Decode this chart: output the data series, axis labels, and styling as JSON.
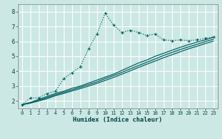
{
  "xlabel": "Humidex (Indice chaleur)",
  "ylabel": "",
  "background_color": "#cce8e4",
  "grid_color": "#ffffff",
  "line_color": "#006060",
  "x": [
    0,
    1,
    2,
    3,
    4,
    5,
    6,
    7,
    8,
    9,
    10,
    11,
    12,
    13,
    14,
    15,
    16,
    17,
    18,
    19,
    20,
    21,
    22,
    23
  ],
  "series1": [
    1.75,
    2.2,
    2.2,
    2.5,
    2.65,
    3.5,
    3.9,
    4.3,
    5.5,
    6.5,
    7.9,
    7.1,
    6.6,
    6.75,
    6.6,
    6.4,
    6.5,
    6.1,
    6.05,
    6.1,
    6.05,
    6.1,
    6.2,
    6.3
  ],
  "series2": [
    1.75,
    1.9,
    2.1,
    2.3,
    2.5,
    2.65,
    2.85,
    3.0,
    3.2,
    3.4,
    3.6,
    3.8,
    4.05,
    4.3,
    4.55,
    4.75,
    5.0,
    5.2,
    5.4,
    5.6,
    5.78,
    5.95,
    6.1,
    6.28
  ],
  "series3": [
    1.75,
    1.88,
    2.05,
    2.22,
    2.42,
    2.58,
    2.75,
    2.92,
    3.1,
    3.28,
    3.5,
    3.7,
    3.92,
    4.15,
    4.38,
    4.6,
    4.82,
    5.05,
    5.25,
    5.45,
    5.63,
    5.8,
    5.98,
    6.15
  ],
  "series4": [
    1.75,
    1.85,
    2.0,
    2.15,
    2.35,
    2.5,
    2.67,
    2.83,
    3.0,
    3.18,
    3.38,
    3.58,
    3.8,
    4.02,
    4.25,
    4.47,
    4.68,
    4.9,
    5.1,
    5.3,
    5.5,
    5.67,
    5.85,
    6.02
  ],
  "ylim": [
    1.5,
    8.5
  ],
  "xlim": [
    -0.5,
    23.5
  ],
  "yticks": [
    2,
    3,
    4,
    5,
    6,
    7,
    8
  ],
  "xticks": [
    0,
    1,
    2,
    3,
    4,
    5,
    6,
    7,
    8,
    9,
    10,
    11,
    12,
    13,
    14,
    15,
    16,
    17,
    18,
    19,
    20,
    21,
    22,
    23
  ]
}
